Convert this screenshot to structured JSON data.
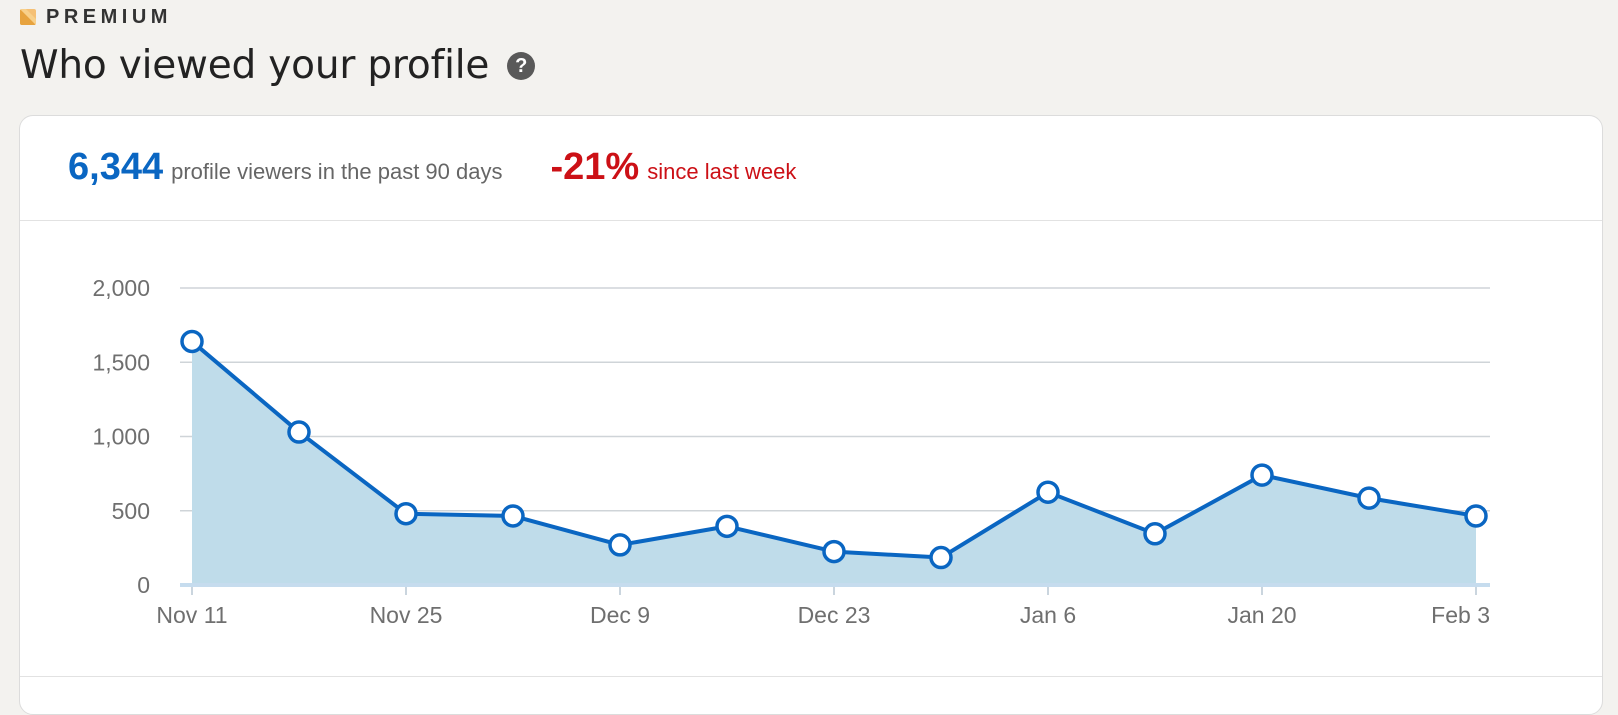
{
  "header": {
    "premium_label": "PREMIUM",
    "title": "Who viewed your profile"
  },
  "icons": {
    "premium": "premium-badge-icon",
    "help": "question-mark-icon"
  },
  "stats": {
    "viewers_count": "6,344",
    "viewers_label": "profile viewers in the past 90 days",
    "change_value": "-21%",
    "change_label": "since last week"
  },
  "colors": {
    "accent_blue": "#0a66c2",
    "negative_red": "#cc1016",
    "area_fill": "#bfdcea",
    "premium_gold": "#e7a33e"
  },
  "chart_data": {
    "type": "area",
    "x": [
      "Nov 11",
      "Nov 18",
      "Nov 25",
      "Dec 2",
      "Dec 9",
      "Dec 16",
      "Dec 23",
      "Dec 30",
      "Jan 6",
      "Jan 13",
      "Jan 20",
      "Jan 27",
      "Feb 3"
    ],
    "tick_labels": [
      "Nov 11",
      "Nov 25",
      "Dec 9",
      "Dec 23",
      "Jan 6",
      "Jan 20",
      "Feb 3"
    ],
    "values": [
      1640,
      1030,
      480,
      465,
      270,
      395,
      225,
      185,
      625,
      345,
      740,
      585,
      465
    ],
    "y_ticks": [
      0,
      500,
      1000,
      1500,
      2000
    ],
    "y_tick_labels": [
      "0",
      "500",
      "1,000",
      "1,500",
      "2,000"
    ],
    "ylim": [
      0,
      2000
    ],
    "grid": true,
    "legend": "none",
    "title": "",
    "xlabel": "",
    "ylabel": ""
  }
}
